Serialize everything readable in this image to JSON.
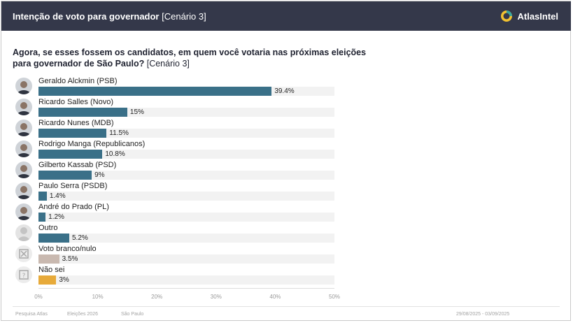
{
  "header": {
    "title_bold": "Intenção de voto para governador",
    "title_rest": "[Cenário 3]",
    "brand": "AtlasIntel"
  },
  "question": {
    "main": "Agora, se esses fossem os candidatos, em quem você votaria nas próximas eleições para governador de São Paulo?",
    "suffix": "[Cenário 3]"
  },
  "colors": {
    "candidate": "#3a7088",
    "blank": "#c9b9b0",
    "undecided": "#e7aa3a",
    "header_bg": "#34384a"
  },
  "chart_data": {
    "type": "bar",
    "orientation": "horizontal",
    "categories": [
      "Geraldo Alckmin (PSB)",
      "Ricardo Salles (Novo)",
      "Ricardo Nunes (MDB)",
      "Rodrigo Manga (Republicanos)",
      "Gilberto Kassab (PSD)",
      "Paulo Serra (PSDB)",
      "André do Prado (PL)",
      "Outro",
      "Voto branco/nulo",
      "Não sei"
    ],
    "values": [
      39.4,
      15,
      11.5,
      10.8,
      9,
      1.4,
      1.2,
      5.2,
      3.5,
      3
    ],
    "value_labels": [
      "39.4%",
      "15%",
      "11.5%",
      "10.8%",
      "9%",
      "1.4%",
      "1.2%",
      "5.2%",
      "3.5%",
      "3%"
    ],
    "bar_kinds": [
      "candidate",
      "candidate",
      "candidate",
      "candidate",
      "candidate",
      "candidate",
      "candidate",
      "candidate",
      "blank",
      "undecided"
    ],
    "avatar_kinds": [
      "photo",
      "photo",
      "photo",
      "photo",
      "photo",
      "photo",
      "photo",
      "person-placeholder",
      "blank-vote",
      "unknown"
    ],
    "xlim": [
      0,
      50
    ],
    "xticks": [
      "0%",
      "10%",
      "20%",
      "30%",
      "40%",
      "50%"
    ],
    "tick_values": [
      0,
      10,
      20,
      30,
      40,
      50
    ],
    "grid": false
  },
  "footer": {
    "source": "Pesquisa Atlas",
    "topic": "Eleições 2026",
    "region": "São Paulo",
    "dates": "29/08/2025 - 03/09/2025"
  }
}
